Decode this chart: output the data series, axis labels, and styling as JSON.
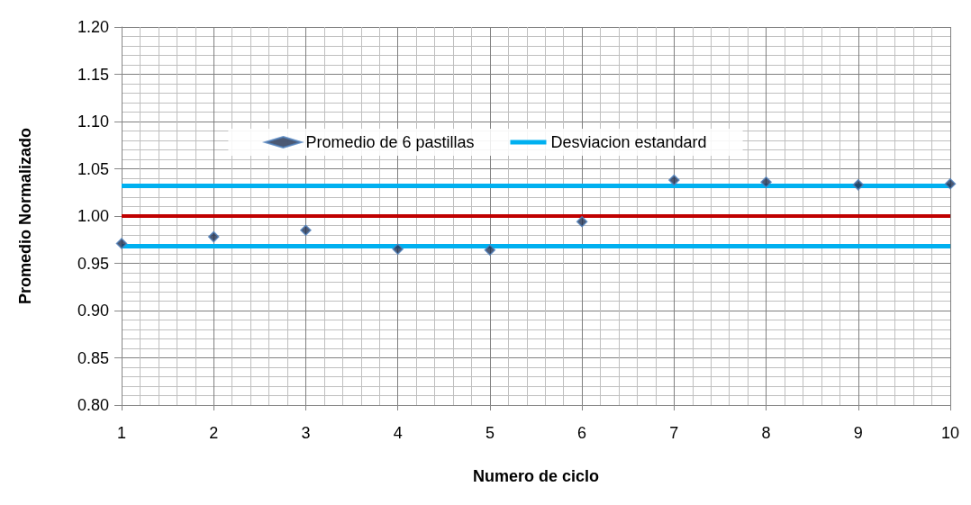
{
  "chart_data": {
    "type": "scatter",
    "xlabel": "Numero de ciclo",
    "ylabel": "Promedio Normalizado",
    "xlim": [
      1,
      10
    ],
    "xticks": [
      1,
      2,
      3,
      4,
      5,
      6,
      7,
      8,
      9,
      10
    ],
    "ylim": [
      0.8,
      1.2
    ],
    "yticks": [
      {
        "value": 0.8,
        "label": "0.80"
      },
      {
        "value": 0.85,
        "label": "0.85"
      },
      {
        "value": 0.9,
        "label": "0.90"
      },
      {
        "value": 0.95,
        "label": "0.95"
      },
      {
        "value": 1.0,
        "label": "1.00"
      },
      {
        "value": 1.05,
        "label": "1.05"
      },
      {
        "value": 1.1,
        "label": "1.10"
      },
      {
        "value": 1.15,
        "label": "1.15"
      },
      {
        "value": 1.2,
        "label": "1.20"
      }
    ],
    "grid": true,
    "legend": "top",
    "marker": "diamond",
    "series": [
      {
        "name": "Promedio de 6 pastillas",
        "color": "#1f3050",
        "x": [
          1,
          2,
          3,
          4,
          5,
          6,
          7,
          8,
          9,
          10
        ],
        "values": [
          0.971,
          0.978,
          0.985,
          0.965,
          0.964,
          0.994,
          1.038,
          1.036,
          1.033,
          1.034
        ]
      },
      {
        "name": "Desviacion estandard",
        "type": "line",
        "marker": "none",
        "color": "#00b0f0",
        "x": [
          1,
          10
        ],
        "values": [
          1.032,
          1.032
        ]
      },
      {
        "type": "line",
        "marker": "none",
        "color": "#00b0f0",
        "x": [
          1,
          10
        ],
        "values": [
          0.968,
          0.968
        ]
      }
    ],
    "ref_lines": [
      {
        "axis": "y",
        "value": 1.0,
        "color": "#c00000"
      }
    ]
  }
}
